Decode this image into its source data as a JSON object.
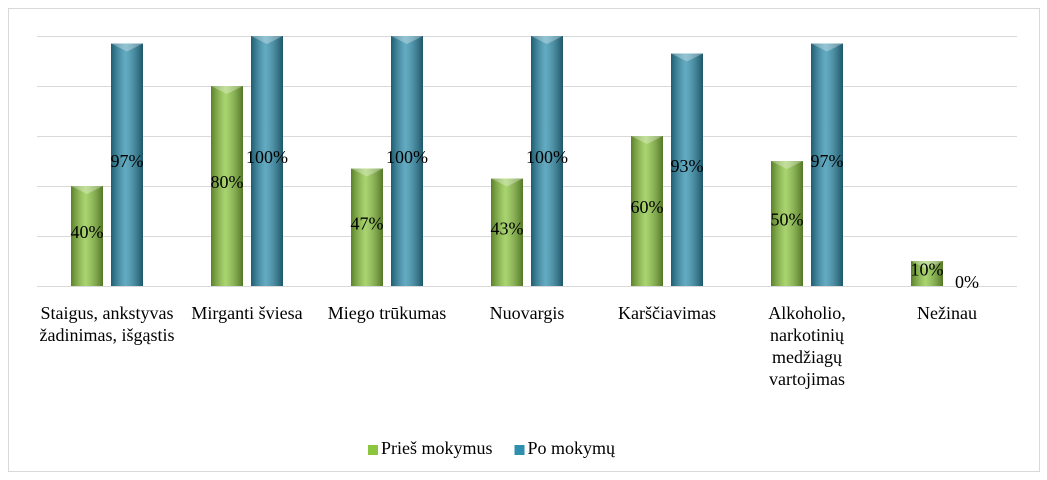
{
  "chart_data": {
    "type": "bar",
    "categories": [
      "Staigus, ankstyvas žadinimas, išgąstis",
      "Mirganti šviesa",
      "Miego trūkumas",
      "Nuovargis",
      "Karščiavimas",
      "Alkoholio, narkotinių medžiagų vartojimas",
      "Nežinau"
    ],
    "series": [
      {
        "name": "Prieš mokymus",
        "color": "#8cc63f",
        "values": [
          40,
          80,
          47,
          43,
          60,
          50,
          10
        ],
        "value_labels": [
          "40%",
          "80%",
          "47%",
          "43%",
          "60%",
          "50%",
          "10%"
        ]
      },
      {
        "name": "Po mokymų",
        "color": "#2f8fae",
        "values": [
          97,
          100,
          100,
          100,
          93,
          97,
          0
        ],
        "value_labels": [
          "97%",
          "100%",
          "100%",
          "100%",
          "93%",
          "97%",
          "0%"
        ]
      }
    ],
    "ylim": [
      0,
      100
    ],
    "yticks": [
      0,
      20,
      40,
      60,
      80,
      100
    ],
    "grid": true,
    "legend": "bottom"
  }
}
